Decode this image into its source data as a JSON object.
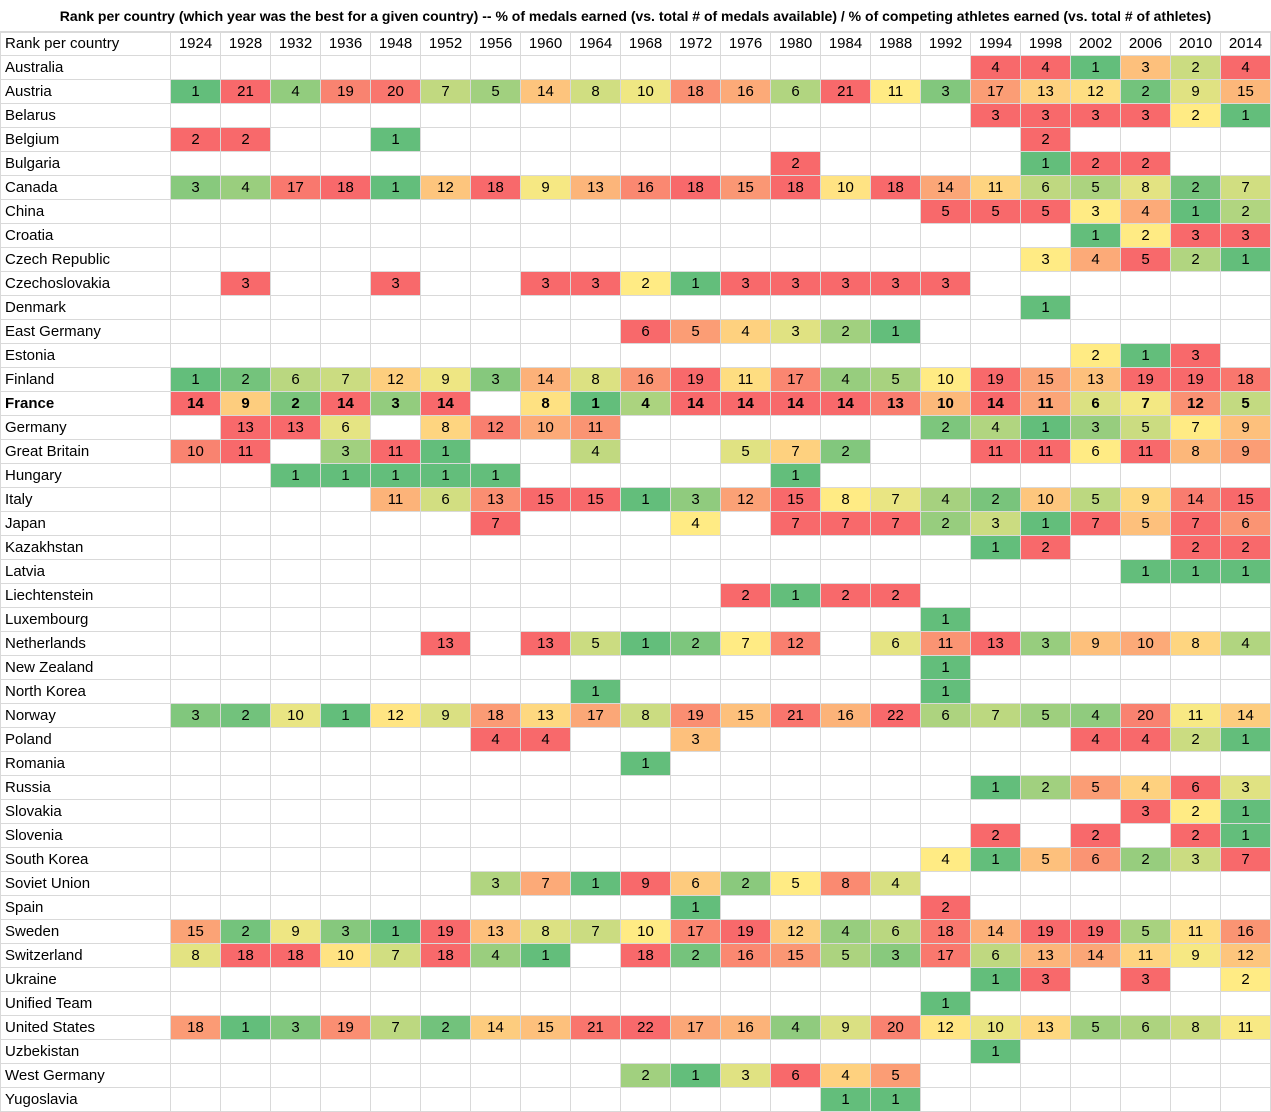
{
  "title": "Rank per country (which year was the best for a given country) -- % of medals earned (vs. total # of medals available) / % of competing athletes earned (vs. total # of athletes)",
  "chart_data": {
    "type": "heatmap",
    "corner_label": "Rank per country",
    "years": [
      "1924",
      "1928",
      "1932",
      "1936",
      "1948",
      "1952",
      "1956",
      "1960",
      "1964",
      "1968",
      "1972",
      "1976",
      "1980",
      "1984",
      "1988",
      "1992",
      "1994",
      "1998",
      "2002",
      "2006",
      "2010",
      "2014"
    ],
    "colors": {
      "best": "#63be7b",
      "mid": "#ffeb84",
      "worst": "#f8696b"
    },
    "highlight_row": "France",
    "rows": [
      {
        "country": "Australia",
        "values": [
          null,
          null,
          null,
          null,
          null,
          null,
          null,
          null,
          null,
          null,
          null,
          null,
          null,
          null,
          null,
          null,
          4,
          4,
          1,
          3,
          2,
          4
        ]
      },
      {
        "country": "Austria",
        "values": [
          1,
          21,
          4,
          19,
          20,
          7,
          5,
          14,
          8,
          10,
          18,
          16,
          6,
          21,
          11,
          3,
          17,
          13,
          12,
          2,
          9,
          15
        ]
      },
      {
        "country": "Belarus",
        "values": [
          null,
          null,
          null,
          null,
          null,
          null,
          null,
          null,
          null,
          null,
          null,
          null,
          null,
          null,
          null,
          null,
          3,
          3,
          3,
          3,
          2,
          1
        ]
      },
      {
        "country": "Belgium",
        "values": [
          2,
          2,
          null,
          null,
          1,
          null,
          null,
          null,
          null,
          null,
          null,
          null,
          null,
          null,
          null,
          null,
          null,
          2,
          null,
          null,
          null,
          null
        ]
      },
      {
        "country": "Bulgaria",
        "values": [
          null,
          null,
          null,
          null,
          null,
          null,
          null,
          null,
          null,
          null,
          null,
          null,
          2,
          null,
          null,
          null,
          null,
          1,
          2,
          2,
          null,
          null
        ]
      },
      {
        "country": "Canada",
        "values": [
          3,
          4,
          17,
          18,
          1,
          12,
          18,
          9,
          13,
          16,
          18,
          15,
          18,
          10,
          18,
          14,
          11,
          6,
          5,
          8,
          2,
          7
        ]
      },
      {
        "country": "China",
        "values": [
          null,
          null,
          null,
          null,
          null,
          null,
          null,
          null,
          null,
          null,
          null,
          null,
          null,
          null,
          null,
          5,
          5,
          5,
          3,
          4,
          1,
          2
        ]
      },
      {
        "country": "Croatia",
        "values": [
          null,
          null,
          null,
          null,
          null,
          null,
          null,
          null,
          null,
          null,
          null,
          null,
          null,
          null,
          null,
          null,
          null,
          null,
          1,
          2,
          3,
          3
        ]
      },
      {
        "country": "Czech Republic",
        "values": [
          null,
          null,
          null,
          null,
          null,
          null,
          null,
          null,
          null,
          null,
          null,
          null,
          null,
          null,
          null,
          null,
          null,
          3,
          4,
          5,
          2,
          1
        ]
      },
      {
        "country": "Czechoslovakia",
        "values": [
          null,
          3,
          null,
          null,
          3,
          null,
          null,
          3,
          3,
          2,
          1,
          3,
          3,
          3,
          3,
          3,
          null,
          null,
          null,
          null,
          null,
          null
        ]
      },
      {
        "country": "Denmark",
        "values": [
          null,
          null,
          null,
          null,
          null,
          null,
          null,
          null,
          null,
          null,
          null,
          null,
          null,
          null,
          null,
          null,
          null,
          1,
          null,
          null,
          null,
          null
        ]
      },
      {
        "country": "East Germany",
        "values": [
          null,
          null,
          null,
          null,
          null,
          null,
          null,
          null,
          null,
          6,
          5,
          4,
          3,
          2,
          1,
          null,
          null,
          null,
          null,
          null,
          null,
          null
        ]
      },
      {
        "country": "Estonia",
        "values": [
          null,
          null,
          null,
          null,
          null,
          null,
          null,
          null,
          null,
          null,
          null,
          null,
          null,
          null,
          null,
          null,
          null,
          null,
          2,
          1,
          3,
          null
        ]
      },
      {
        "country": "Finland",
        "values": [
          1,
          2,
          6,
          7,
          12,
          9,
          3,
          14,
          8,
          16,
          19,
          11,
          17,
          4,
          5,
          10,
          19,
          15,
          13,
          19,
          19,
          18
        ]
      },
      {
        "country": "France",
        "values": [
          14,
          9,
          2,
          14,
          3,
          14,
          null,
          8,
          1,
          4,
          14,
          14,
          14,
          14,
          13,
          10,
          14,
          11,
          6,
          7,
          12,
          5
        ]
      },
      {
        "country": "Germany",
        "values": [
          null,
          13,
          13,
          6,
          null,
          8,
          12,
          10,
          11,
          null,
          null,
          null,
          null,
          null,
          null,
          2,
          4,
          1,
          3,
          5,
          7,
          9
        ]
      },
      {
        "country": "Great Britain",
        "values": [
          10,
          11,
          null,
          3,
          11,
          1,
          null,
          null,
          4,
          null,
          null,
          5,
          7,
          2,
          null,
          null,
          11,
          11,
          6,
          11,
          8,
          9
        ]
      },
      {
        "country": "Hungary",
        "values": [
          null,
          null,
          1,
          1,
          1,
          1,
          1,
          null,
          null,
          null,
          null,
          null,
          1,
          null,
          null,
          null,
          null,
          null,
          null,
          null,
          null,
          null
        ]
      },
      {
        "country": "Italy",
        "values": [
          null,
          null,
          null,
          null,
          11,
          6,
          13,
          15,
          15,
          1,
          3,
          12,
          15,
          8,
          7,
          4,
          2,
          10,
          5,
          9,
          14,
          15
        ]
      },
      {
        "country": "Japan",
        "values": [
          null,
          null,
          null,
          null,
          null,
          null,
          7,
          null,
          null,
          null,
          4,
          null,
          7,
          7,
          7,
          2,
          3,
          1,
          7,
          5,
          7,
          6
        ]
      },
      {
        "country": "Kazakhstan",
        "values": [
          null,
          null,
          null,
          null,
          null,
          null,
          null,
          null,
          null,
          null,
          null,
          null,
          null,
          null,
          null,
          null,
          1,
          2,
          null,
          null,
          2,
          2
        ]
      },
      {
        "country": "Latvia",
        "values": [
          null,
          null,
          null,
          null,
          null,
          null,
          null,
          null,
          null,
          null,
          null,
          null,
          null,
          null,
          null,
          null,
          null,
          null,
          null,
          1,
          1,
          1
        ]
      },
      {
        "country": "Liechtenstein",
        "values": [
          null,
          null,
          null,
          null,
          null,
          null,
          null,
          null,
          null,
          null,
          null,
          2,
          1,
          2,
          2,
          null,
          null,
          null,
          null,
          null,
          null,
          null
        ]
      },
      {
        "country": "Luxembourg",
        "values": [
          null,
          null,
          null,
          null,
          null,
          null,
          null,
          null,
          null,
          null,
          null,
          null,
          null,
          null,
          null,
          1,
          null,
          null,
          null,
          null,
          null,
          null
        ]
      },
      {
        "country": "Netherlands",
        "values": [
          null,
          null,
          null,
          null,
          null,
          13,
          null,
          13,
          5,
          1,
          2,
          7,
          12,
          null,
          6,
          11,
          13,
          3,
          9,
          10,
          8,
          4
        ]
      },
      {
        "country": "New Zealand",
        "values": [
          null,
          null,
          null,
          null,
          null,
          null,
          null,
          null,
          null,
          null,
          null,
          null,
          null,
          null,
          null,
          1,
          null,
          null,
          null,
          null,
          null,
          null
        ]
      },
      {
        "country": "North Korea",
        "values": [
          null,
          null,
          null,
          null,
          null,
          null,
          null,
          null,
          1,
          null,
          null,
          null,
          null,
          null,
          null,
          1,
          null,
          null,
          null,
          null,
          null,
          null
        ]
      },
      {
        "country": "Norway",
        "values": [
          3,
          2,
          10,
          1,
          12,
          9,
          18,
          13,
          17,
          8,
          19,
          15,
          21,
          16,
          22,
          6,
          7,
          5,
          4,
          20,
          11,
          14
        ]
      },
      {
        "country": "Poland",
        "values": [
          null,
          null,
          null,
          null,
          null,
          null,
          4,
          4,
          null,
          null,
          3,
          null,
          null,
          null,
          null,
          null,
          null,
          null,
          4,
          4,
          2,
          1
        ]
      },
      {
        "country": "Romania",
        "values": [
          null,
          null,
          null,
          null,
          null,
          null,
          null,
          null,
          null,
          1,
          null,
          null,
          null,
          null,
          null,
          null,
          null,
          null,
          null,
          null,
          null,
          null
        ]
      },
      {
        "country": "Russia",
        "values": [
          null,
          null,
          null,
          null,
          null,
          null,
          null,
          null,
          null,
          null,
          null,
          null,
          null,
          null,
          null,
          null,
          1,
          2,
          5,
          4,
          6,
          3
        ]
      },
      {
        "country": "Slovakia",
        "values": [
          null,
          null,
          null,
          null,
          null,
          null,
          null,
          null,
          null,
          null,
          null,
          null,
          null,
          null,
          null,
          null,
          null,
          null,
          null,
          3,
          2,
          1
        ]
      },
      {
        "country": "Slovenia",
        "values": [
          null,
          null,
          null,
          null,
          null,
          null,
          null,
          null,
          null,
          null,
          null,
          null,
          null,
          null,
          null,
          null,
          2,
          null,
          2,
          null,
          2,
          1
        ]
      },
      {
        "country": "South Korea",
        "values": [
          null,
          null,
          null,
          null,
          null,
          null,
          null,
          null,
          null,
          null,
          null,
          null,
          null,
          null,
          null,
          4,
          1,
          5,
          6,
          2,
          3,
          7
        ]
      },
      {
        "country": "Soviet Union",
        "values": [
          null,
          null,
          null,
          null,
          null,
          null,
          3,
          7,
          1,
          9,
          6,
          2,
          5,
          8,
          4,
          null,
          null,
          null,
          null,
          null,
          null,
          null
        ]
      },
      {
        "country": "Spain",
        "values": [
          null,
          null,
          null,
          null,
          null,
          null,
          null,
          null,
          null,
          null,
          1,
          null,
          null,
          null,
          null,
          2,
          null,
          null,
          null,
          null,
          null,
          null
        ]
      },
      {
        "country": "Sweden",
        "values": [
          15,
          2,
          9,
          3,
          1,
          19,
          13,
          8,
          7,
          10,
          17,
          19,
          12,
          4,
          6,
          18,
          14,
          19,
          19,
          5,
          11,
          16
        ]
      },
      {
        "country": "Switzerland",
        "values": [
          8,
          18,
          18,
          10,
          7,
          18,
          4,
          1,
          null,
          18,
          2,
          16,
          15,
          5,
          3,
          17,
          6,
          13,
          14,
          11,
          9,
          12
        ]
      },
      {
        "country": "Ukraine",
        "values": [
          null,
          null,
          null,
          null,
          null,
          null,
          null,
          null,
          null,
          null,
          null,
          null,
          null,
          null,
          null,
          null,
          1,
          3,
          null,
          3,
          null,
          2
        ]
      },
      {
        "country": "Unified Team",
        "values": [
          null,
          null,
          null,
          null,
          null,
          null,
          null,
          null,
          null,
          null,
          null,
          null,
          null,
          null,
          null,
          1,
          null,
          null,
          null,
          null,
          null,
          null
        ]
      },
      {
        "country": "United States",
        "values": [
          18,
          1,
          3,
          19,
          7,
          2,
          14,
          15,
          21,
          22,
          17,
          16,
          4,
          9,
          20,
          12,
          10,
          13,
          5,
          6,
          8,
          11
        ]
      },
      {
        "country": "Uzbekistan",
        "values": [
          null,
          null,
          null,
          null,
          null,
          null,
          null,
          null,
          null,
          null,
          null,
          null,
          null,
          null,
          null,
          null,
          1,
          null,
          null,
          null,
          null,
          null
        ]
      },
      {
        "country": "West Germany",
        "values": [
          null,
          null,
          null,
          null,
          null,
          null,
          null,
          null,
          null,
          2,
          1,
          3,
          6,
          4,
          5,
          null,
          null,
          null,
          null,
          null,
          null,
          null
        ]
      },
      {
        "country": "Yugoslavia",
        "values": [
          null,
          null,
          null,
          null,
          null,
          null,
          null,
          null,
          null,
          null,
          null,
          null,
          null,
          1,
          1,
          null,
          null,
          null,
          null,
          null,
          null,
          null
        ]
      }
    ]
  }
}
